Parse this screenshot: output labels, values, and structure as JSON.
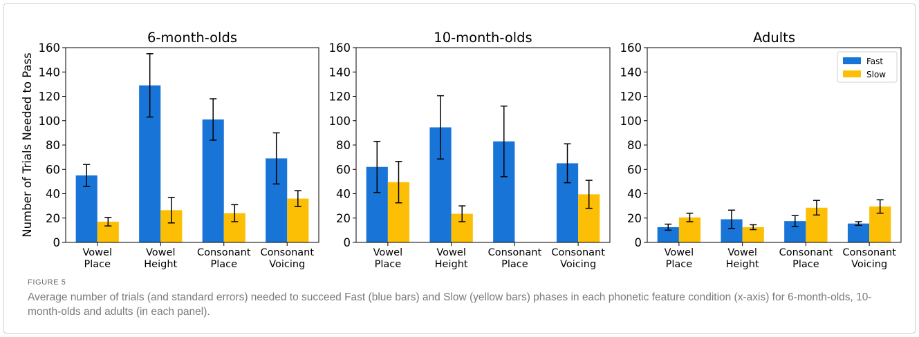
{
  "figure": {
    "label": "FIGURE 5",
    "caption": "Average number of trials (and standard errors) needed to succeed Fast (blue bars) and Slow (yellow bars) phases in each phonetic feature condition (x-axis) for 6-month-olds, 10-month-olds and adults (in each panel)."
  },
  "colors": {
    "fast": "#1874d6",
    "slow": "#fdbf05",
    "error_bar": "#000000"
  },
  "chart_data": [
    {
      "type": "bar",
      "title": "6-month-olds",
      "ylabel": "Number of Trials Needed to Pass",
      "ylim": [
        0,
        160
      ],
      "yticks": [
        0,
        20,
        40,
        60,
        80,
        100,
        120,
        140,
        160
      ],
      "categories": [
        "Vowel\nPlace",
        "Vowel\nHeight",
        "Consonant\nPlace",
        "Consonant\nVoicing"
      ],
      "series": [
        {
          "name": "Fast",
          "values": [
            55,
            129,
            101,
            69
          ],
          "errors": [
            9,
            26,
            17,
            21
          ]
        },
        {
          "name": "Slow",
          "values": [
            17,
            26.5,
            24,
            36
          ],
          "errors": [
            3.5,
            10.5,
            7,
            6.5
          ]
        }
      ]
    },
    {
      "type": "bar",
      "title": "10-month-olds",
      "ylim": [
        0,
        160
      ],
      "yticks": [
        0,
        20,
        40,
        60,
        80,
        100,
        120,
        140,
        160
      ],
      "categories": [
        "Vowel\nPlace",
        "Vowel\nHeight",
        "Consonant\nPlace",
        "Consonant\nVoicing"
      ],
      "series": [
        {
          "name": "Fast",
          "values": [
            62,
            94.5,
            83,
            65
          ],
          "errors": [
            21,
            26,
            29,
            16
          ]
        },
        {
          "name": "Slow",
          "values": [
            49.5,
            23.5,
            null,
            39.5
          ],
          "errors": [
            17,
            6.5,
            null,
            11.5
          ]
        }
      ]
    },
    {
      "type": "bar",
      "title": "Adults",
      "ylim": [
        0,
        160
      ],
      "yticks": [
        0,
        20,
        40,
        60,
        80,
        100,
        120,
        140,
        160
      ],
      "categories": [
        "Vowel\nPlace",
        "Vowel\nHeight",
        "Consonant\nPlace",
        "Consonant\nVoicing"
      ],
      "legend": {
        "position": "top-right",
        "entries": [
          "Fast",
          "Slow"
        ]
      },
      "series": [
        {
          "name": "Fast",
          "values": [
            12.5,
            19,
            17.5,
            15.5
          ],
          "errors": [
            2.5,
            7.5,
            4.5,
            1.5
          ]
        },
        {
          "name": "Slow",
          "values": [
            20.5,
            12.5,
            28.5,
            29.5
          ],
          "errors": [
            3.5,
            2,
            6,
            5.5
          ]
        }
      ]
    }
  ]
}
